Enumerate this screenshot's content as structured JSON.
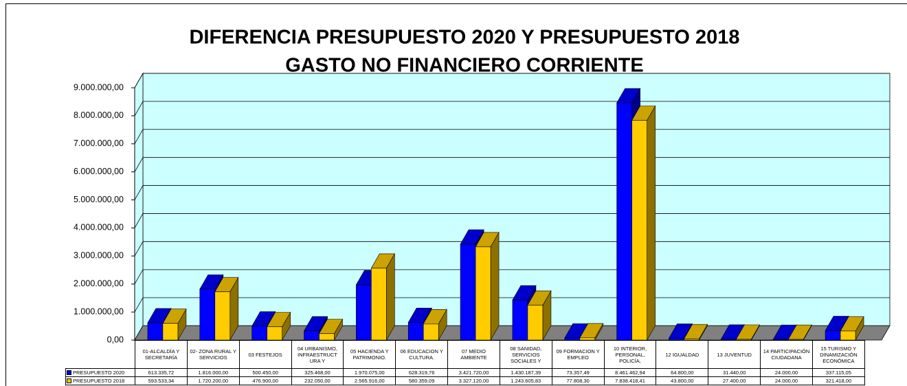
{
  "chart_data": {
    "type": "bar3d",
    "title": "DIFERENCIA PRESUPUESTO 2020 Y PRESUPUESTO 2018",
    "subtitle": "GASTO NO FINANCIERO CORRIENTE",
    "categories": [
      "01-ALCALDÍA Y SECRETARÍA",
      "02- ZONA RURAL Y SERVICIOS",
      "03 FESTEJOS",
      "04 URBANISMO, INFRAESTRUCT URA Y",
      "05 HACIENDA Y PATRIMONIO.",
      "06 EDUCACION Y CULTURA.",
      "07 MEDIO AMBIENTE",
      "08 SANIDAD, SERVICIOS SOCIALES Y",
      "09 FORMACION Y EMPLEO",
      "10 INTERIOR, PERSONAL, POLICÍA,",
      "12 IGUALDAD",
      "13 JUVENTUD",
      "14 PARTICIPACIÓN CIUDADANA",
      "15 TURISMO Y DINAMIZACIÓN ECONÓMICA"
    ],
    "series": [
      {
        "name": "PRESUPUESTO 2020",
        "color": "#0000ff",
        "values": [
          613335.72,
          1816000,
          500450,
          325468,
          1970075,
          628319.76,
          3421720,
          1430187.39,
          73357.49,
          8461462.94,
          64800,
          31440,
          24000,
          337115.05
        ],
        "value_labels": [
          "613.335,72",
          "1.816.000,00",
          "500.450,00",
          "325.468,00",
          "1.970.075,00",
          "628.319,76",
          "3.421.720,00",
          "1.430.187,39",
          "73.357,49",
          "8.461.462,94",
          "64.800,00",
          "31.440,00",
          "24.000,00",
          "337.115,05"
        ]
      },
      {
        "name": "PRESUPUESTO 2018",
        "color": "#ffcc00",
        "values": [
          593533.34,
          1720200,
          476900,
          232050,
          2565916,
          580359.09,
          3327120,
          1243605.83,
          77808.3,
          7838418.41,
          43800,
          27400,
          24000,
          321418
        ],
        "value_labels": [
          "593.533,34",
          "1.720.200,00",
          "476.900,00",
          "232.050,00",
          "2.565.916,00",
          "580.359,09",
          "3.327.120,00",
          "1.243.605,83",
          "77.808,30",
          "7.838.418,41",
          "43.800,00",
          "27.400,00",
          "24.000,00",
          "321.418,00"
        ]
      }
    ],
    "ylim": [
      0,
      9000000
    ],
    "yticks": [
      {
        "value": 0,
        "label": "0,00"
      },
      {
        "value": 1000000,
        "label": "1.000.000,00"
      },
      {
        "value": 2000000,
        "label": "2.000.000,00"
      },
      {
        "value": 3000000,
        "label": "3.000.000,00"
      },
      {
        "value": 4000000,
        "label": "4.000.000,00"
      },
      {
        "value": 5000000,
        "label": "5.000.000,00"
      },
      {
        "value": 6000000,
        "label": "6.000.000,00"
      },
      {
        "value": 7000000,
        "label": "7.000.000,00"
      },
      {
        "value": 8000000,
        "label": "8.000.000,00"
      },
      {
        "value": 9000000,
        "label": "9.000.000,00"
      }
    ],
    "grid": true
  }
}
